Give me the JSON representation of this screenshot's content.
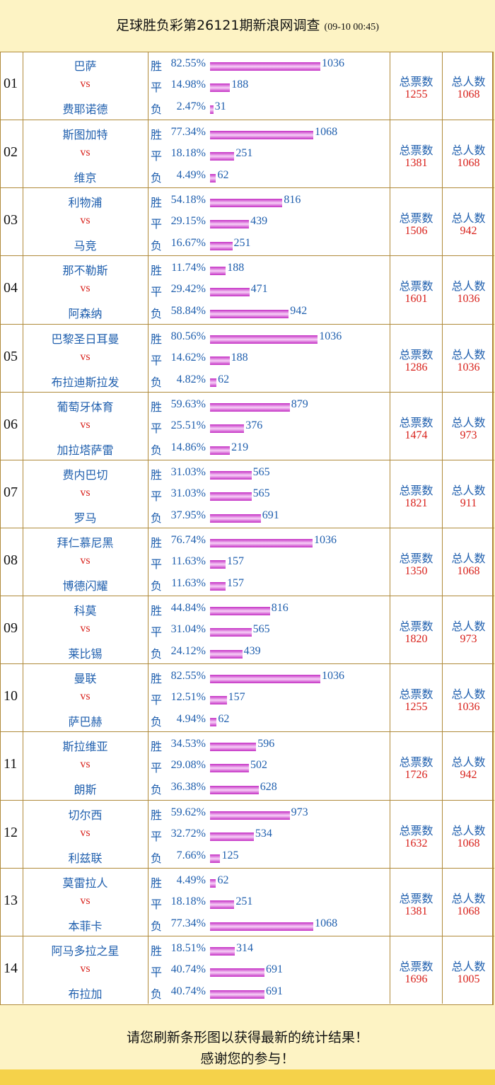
{
  "header": {
    "title": "足球胜负彩第26121期新浪网调查",
    "time": "(09-10 00:45)"
  },
  "labels": {
    "vs": "vs",
    "total_votes": "总票数",
    "total_people": "总人数"
  },
  "rows": [
    {
      "no": "01",
      "home": "巴萨",
      "away": "费耶诺德",
      "outcomes": [
        {
          "label": "胜",
          "pct": 82.55,
          "pct_label": "82.55%",
          "count": 1036
        },
        {
          "label": "平",
          "pct": 14.98,
          "pct_label": "14.98%",
          "count": 188
        },
        {
          "label": "负",
          "pct": 2.47,
          "pct_label": "2.47%",
          "count": 31
        }
      ],
      "total_votes": 1255,
      "total_people": 1068
    },
    {
      "no": "02",
      "home": "斯图加特",
      "away": "维京",
      "outcomes": [
        {
          "label": "胜",
          "pct": 77.34,
          "pct_label": "77.34%",
          "count": 1068
        },
        {
          "label": "平",
          "pct": 18.18,
          "pct_label": "18.18%",
          "count": 251
        },
        {
          "label": "负",
          "pct": 4.49,
          "pct_label": "4.49%",
          "count": 62
        }
      ],
      "total_votes": 1381,
      "total_people": 1068
    },
    {
      "no": "03",
      "home": "利物浦",
      "away": "马竞",
      "outcomes": [
        {
          "label": "胜",
          "pct": 54.18,
          "pct_label": "54.18%",
          "count": 816
        },
        {
          "label": "平",
          "pct": 29.15,
          "pct_label": "29.15%",
          "count": 439
        },
        {
          "label": "负",
          "pct": 16.67,
          "pct_label": "16.67%",
          "count": 251
        }
      ],
      "total_votes": 1506,
      "total_people": 942
    },
    {
      "no": "04",
      "home": "那不勒斯",
      "away": "阿森纳",
      "outcomes": [
        {
          "label": "胜",
          "pct": 11.74,
          "pct_label": "11.74%",
          "count": 188
        },
        {
          "label": "平",
          "pct": 29.42,
          "pct_label": "29.42%",
          "count": 471
        },
        {
          "label": "负",
          "pct": 58.84,
          "pct_label": "58.84%",
          "count": 942
        }
      ],
      "total_votes": 1601,
      "total_people": 1036
    },
    {
      "no": "05",
      "home": "巴黎圣日耳曼",
      "away": "布拉迪斯拉发",
      "outcomes": [
        {
          "label": "胜",
          "pct": 80.56,
          "pct_label": "80.56%",
          "count": 1036
        },
        {
          "label": "平",
          "pct": 14.62,
          "pct_label": "14.62%",
          "count": 188
        },
        {
          "label": "负",
          "pct": 4.82,
          "pct_label": "4.82%",
          "count": 62
        }
      ],
      "total_votes": 1286,
      "total_people": 1036
    },
    {
      "no": "06",
      "home": "葡萄牙体育",
      "away": "加拉塔萨雷",
      "outcomes": [
        {
          "label": "胜",
          "pct": 59.63,
          "pct_label": "59.63%",
          "count": 879
        },
        {
          "label": "平",
          "pct": 25.51,
          "pct_label": "25.51%",
          "count": 376
        },
        {
          "label": "负",
          "pct": 14.86,
          "pct_label": "14.86%",
          "count": 219
        }
      ],
      "total_votes": 1474,
      "total_people": 973
    },
    {
      "no": "07",
      "home": "费内巴切",
      "away": "罗马",
      "outcomes": [
        {
          "label": "胜",
          "pct": 31.03,
          "pct_label": "31.03%",
          "count": 565
        },
        {
          "label": "平",
          "pct": 31.03,
          "pct_label": "31.03%",
          "count": 565
        },
        {
          "label": "负",
          "pct": 37.95,
          "pct_label": "37.95%",
          "count": 691
        }
      ],
      "total_votes": 1821,
      "total_people": 911
    },
    {
      "no": "08",
      "home": "拜仁慕尼黑",
      "away": "博德闪耀",
      "outcomes": [
        {
          "label": "胜",
          "pct": 76.74,
          "pct_label": "76.74%",
          "count": 1036
        },
        {
          "label": "平",
          "pct": 11.63,
          "pct_label": "11.63%",
          "count": 157
        },
        {
          "label": "负",
          "pct": 11.63,
          "pct_label": "11.63%",
          "count": 157
        }
      ],
      "total_votes": 1350,
      "total_people": 1068
    },
    {
      "no": "09",
      "home": "科莫",
      "away": "莱比锡",
      "outcomes": [
        {
          "label": "胜",
          "pct": 44.84,
          "pct_label": "44.84%",
          "count": 816
        },
        {
          "label": "平",
          "pct": 31.04,
          "pct_label": "31.04%",
          "count": 565
        },
        {
          "label": "负",
          "pct": 24.12,
          "pct_label": "24.12%",
          "count": 439
        }
      ],
      "total_votes": 1820,
      "total_people": 973
    },
    {
      "no": "10",
      "home": "曼联",
      "away": "萨巴赫",
      "outcomes": [
        {
          "label": "胜",
          "pct": 82.55,
          "pct_label": "82.55%",
          "count": 1036
        },
        {
          "label": "平",
          "pct": 12.51,
          "pct_label": "12.51%",
          "count": 157
        },
        {
          "label": "负",
          "pct": 4.94,
          "pct_label": "4.94%",
          "count": 62
        }
      ],
      "total_votes": 1255,
      "total_people": 1036
    },
    {
      "no": "11",
      "home": "斯拉维亚",
      "away": "朗斯",
      "outcomes": [
        {
          "label": "胜",
          "pct": 34.53,
          "pct_label": "34.53%",
          "count": 596
        },
        {
          "label": "平",
          "pct": 29.08,
          "pct_label": "29.08%",
          "count": 502
        },
        {
          "label": "负",
          "pct": 36.38,
          "pct_label": "36.38%",
          "count": 628
        }
      ],
      "total_votes": 1726,
      "total_people": 942
    },
    {
      "no": "12",
      "home": "切尔西",
      "away": "利兹联",
      "outcomes": [
        {
          "label": "胜",
          "pct": 59.62,
          "pct_label": "59.62%",
          "count": 973
        },
        {
          "label": "平",
          "pct": 32.72,
          "pct_label": "32.72%",
          "count": 534
        },
        {
          "label": "负",
          "pct": 7.66,
          "pct_label": "7.66%",
          "count": 125
        }
      ],
      "total_votes": 1632,
      "total_people": 1068
    },
    {
      "no": "13",
      "home": "莫雷拉人",
      "away": "本菲卡",
      "outcomes": [
        {
          "label": "胜",
          "pct": 4.49,
          "pct_label": "4.49%",
          "count": 62
        },
        {
          "label": "平",
          "pct": 18.18,
          "pct_label": "18.18%",
          "count": 251
        },
        {
          "label": "负",
          "pct": 77.34,
          "pct_label": "77.34%",
          "count": 1068
        }
      ],
      "total_votes": 1381,
      "total_people": 1068
    },
    {
      "no": "14",
      "home": "阿马多拉之星",
      "away": "布拉加",
      "outcomes": [
        {
          "label": "胜",
          "pct": 18.51,
          "pct_label": "18.51%",
          "count": 314
        },
        {
          "label": "平",
          "pct": 40.74,
          "pct_label": "40.74%",
          "count": 691
        },
        {
          "label": "负",
          "pct": 40.74,
          "pct_label": "40.74%",
          "count": 691
        }
      ],
      "total_votes": 1696,
      "total_people": 1005
    }
  ],
  "footer": {
    "line1": "请您刷新条形图以获得最新的统计结果！",
    "line2": "感谢您的参与！"
  }
}
